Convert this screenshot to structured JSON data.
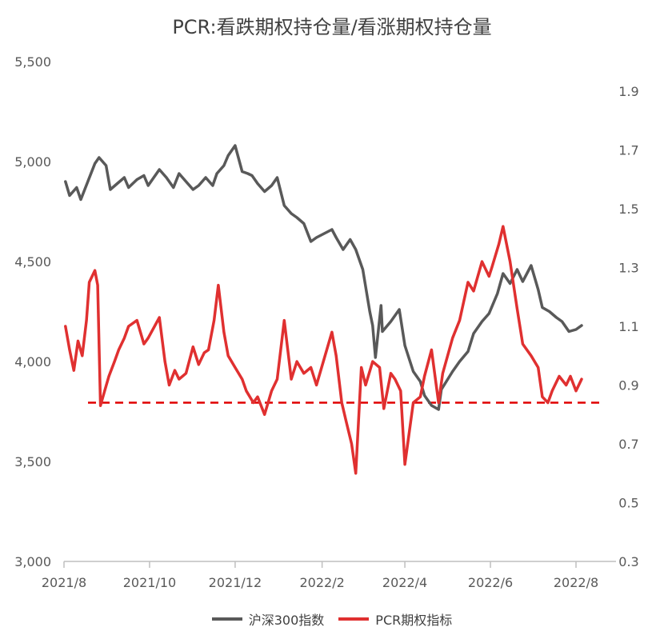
{
  "chart_data": {
    "type": "line",
    "title": "PCR:看跌期权持仓量/看涨期权持仓量",
    "x_ticks": [
      "2021/8",
      "2021/10",
      "2021/12",
      "2022/2",
      "2022/4",
      "2022/6",
      "2022/8"
    ],
    "y_left": {
      "ticks": [
        "5,500",
        "5,000",
        "4,500",
        "4,000",
        "3,500",
        "3,000"
      ],
      "min": 3000,
      "max": 5500
    },
    "y_right": {
      "ticks": [
        "1.9",
        "1.7",
        "1.5",
        "1.3",
        "1.1",
        "0.9",
        "0.7",
        "0.5",
        "0.3"
      ],
      "min": 0.3,
      "max": 1.9
    },
    "reference_line": {
      "axis": "right",
      "value": 0.84,
      "style": "dashed",
      "color": "#e00000"
    },
    "series": [
      {
        "name": "沪深300指数",
        "axis": "left",
        "color": "#595959",
        "x": [
          "2021-08-02",
          "2021-08-05",
          "2021-08-10",
          "2021-08-13",
          "2021-08-18",
          "2021-08-23",
          "2021-08-26",
          "2021-08-31",
          "2021-09-03",
          "2021-09-08",
          "2021-09-13",
          "2021-09-16",
          "2021-09-22",
          "2021-09-27",
          "2021-09-30",
          "2021-10-08",
          "2021-10-13",
          "2021-10-18",
          "2021-10-22",
          "2021-10-27",
          "2021-11-01",
          "2021-11-05",
          "2021-11-10",
          "2021-11-15",
          "2021-11-18",
          "2021-11-23",
          "2021-11-26",
          "2021-12-01",
          "2021-12-06",
          "2021-12-10",
          "2021-12-13",
          "2021-12-17",
          "2021-12-22",
          "2021-12-27",
          "2021-12-31",
          "2022-01-05",
          "2022-01-10",
          "2022-01-14",
          "2022-01-19",
          "2022-01-24",
          "2022-01-28",
          "2022-02-08",
          "2022-02-11",
          "2022-02-16",
          "2022-02-21",
          "2022-02-25",
          "2022-03-02",
          "2022-03-07",
          "2022-03-09",
          "2022-03-11",
          "2022-03-15",
          "2022-03-16",
          "2022-03-22",
          "2022-03-28",
          "2022-04-01",
          "2022-04-07",
          "2022-04-12",
          "2022-04-15",
          "2022-04-20",
          "2022-04-25",
          "2022-04-27",
          "2022-05-05",
          "2022-05-10",
          "2022-05-16",
          "2022-05-20",
          "2022-05-26",
          "2022-05-31",
          "2022-06-06",
          "2022-06-10",
          "2022-06-15",
          "2022-06-20",
          "2022-06-24",
          "2022-06-30",
          "2022-07-05",
          "2022-07-08",
          "2022-07-13",
          "2022-07-18",
          "2022-07-22",
          "2022-07-27",
          "2022-08-01",
          "2022-08-05"
        ],
        "values": [
          4900,
          4830,
          4870,
          4810,
          4900,
          4990,
          5020,
          4980,
          4860,
          4890,
          4920,
          4870,
          4910,
          4930,
          4880,
          4960,
          4920,
          4870,
          4940,
          4900,
          4860,
          4880,
          4920,
          4880,
          4940,
          4980,
          5030,
          5080,
          4950,
          4940,
          4930,
          4890,
          4850,
          4880,
          4920,
          4780,
          4740,
          4720,
          4690,
          4600,
          4620,
          4660,
          4620,
          4560,
          4610,
          4560,
          4460,
          4250,
          4180,
          4020,
          4280,
          4150,
          4200,
          4260,
          4080,
          3950,
          3900,
          3830,
          3780,
          3760,
          3860,
          3950,
          4000,
          4050,
          4140,
          4200,
          4240,
          4340,
          4440,
          4390,
          4460,
          4400,
          4480,
          4360,
          4270,
          4250,
          4220,
          4200,
          4150,
          4160,
          4180
        ]
      },
      {
        "name": "PCR期权指标",
        "axis": "right",
        "color": "#e03030",
        "x": [
          "2021-08-02",
          "2021-08-05",
          "2021-08-08",
          "2021-08-11",
          "2021-08-14",
          "2021-08-17",
          "2021-08-19",
          "2021-08-23",
          "2021-08-25",
          "2021-08-27",
          "2021-08-30",
          "2021-09-02",
          "2021-09-06",
          "2021-09-09",
          "2021-09-13",
          "2021-09-16",
          "2021-09-22",
          "2021-09-27",
          "2021-09-30",
          "2021-10-08",
          "2021-10-12",
          "2021-10-15",
          "2021-10-19",
          "2021-10-22",
          "2021-10-27",
          "2021-11-01",
          "2021-11-05",
          "2021-11-09",
          "2021-11-12",
          "2021-11-16",
          "2021-11-19",
          "2021-11-23",
          "2021-11-26",
          "2021-12-01",
          "2021-12-06",
          "2021-12-09",
          "2021-12-14",
          "2021-12-17",
          "2021-12-22",
          "2021-12-27",
          "2021-12-31",
          "2022-01-05",
          "2022-01-10",
          "2022-01-14",
          "2022-01-19",
          "2022-01-24",
          "2022-01-28",
          "2022-02-08",
          "2022-02-11",
          "2022-02-15",
          "2022-02-18",
          "2022-02-22",
          "2022-02-25",
          "2022-03-01",
          "2022-03-04",
          "2022-03-09",
          "2022-03-14",
          "2022-03-17",
          "2022-03-22",
          "2022-03-25",
          "2022-03-29",
          "2022-04-01",
          "2022-04-07",
          "2022-04-12",
          "2022-04-15",
          "2022-04-20",
          "2022-04-25",
          "2022-04-28",
          "2022-05-05",
          "2022-05-10",
          "2022-05-16",
          "2022-05-20",
          "2022-05-26",
          "2022-05-31",
          "2022-06-02",
          "2022-06-07",
          "2022-06-10",
          "2022-06-15",
          "2022-06-20",
          "2022-06-24",
          "2022-06-30",
          "2022-07-05",
          "2022-07-08",
          "2022-07-12",
          "2022-07-15",
          "2022-07-20",
          "2022-07-25",
          "2022-07-28",
          "2022-08-01",
          "2022-08-05"
        ],
        "values": [
          1.1,
          1.02,
          0.95,
          1.05,
          1.0,
          1.12,
          1.25,
          1.29,
          1.24,
          0.83,
          0.88,
          0.93,
          0.98,
          1.02,
          1.06,
          1.1,
          1.12,
          1.04,
          1.06,
          1.13,
          0.98,
          0.9,
          0.95,
          0.92,
          0.94,
          1.03,
          0.97,
          1.01,
          1.02,
          1.12,
          1.24,
          1.08,
          1.0,
          0.96,
          0.92,
          0.88,
          0.84,
          0.86,
          0.8,
          0.88,
          0.92,
          1.12,
          0.92,
          0.98,
          0.94,
          0.96,
          0.9,
          1.08,
          1.0,
          0.84,
          0.78,
          0.7,
          0.6,
          0.96,
          0.9,
          0.98,
          0.96,
          0.82,
          0.94,
          0.92,
          0.88,
          0.63,
          0.84,
          0.86,
          0.93,
          1.02,
          0.84,
          0.94,
          1.06,
          1.12,
          1.25,
          1.22,
          1.32,
          1.27,
          1.3,
          1.38,
          1.44,
          1.32,
          1.16,
          1.04,
          1.0,
          0.96,
          0.86,
          0.84,
          0.88,
          0.93,
          0.9,
          0.93,
          0.88,
          0.92
        ]
      }
    ]
  }
}
